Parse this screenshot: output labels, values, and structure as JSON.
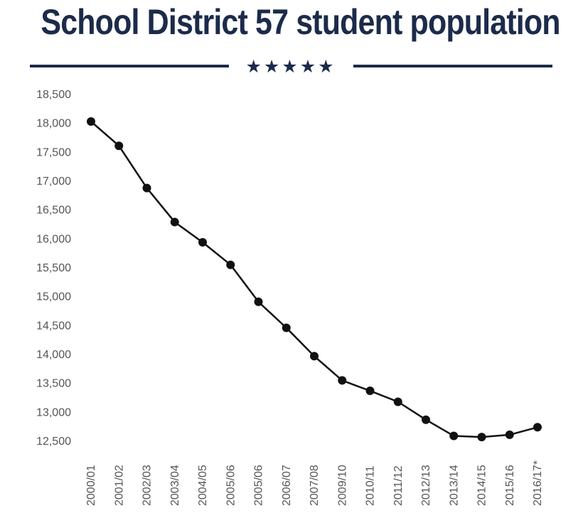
{
  "colors": {
    "navy": "#1c2b4a",
    "line": "#111111",
    "text": "#555555"
  },
  "stars": "★★★★★",
  "chart_data": {
    "type": "line",
    "title": "School District 57 student population",
    "xlabel": "",
    "ylabel": "",
    "ylim": [
      12500,
      18500
    ],
    "yticks": [
      18500,
      18000,
      17500,
      17000,
      16500,
      16000,
      15500,
      15000,
      14500,
      14000,
      13500,
      13000,
      12500
    ],
    "ytick_labels": [
      "18,500",
      "18,000",
      "17,500",
      "17,000",
      "16,500",
      "16,000",
      "15,500",
      "15,000",
      "14,500",
      "14,000",
      "13,500",
      "13,000",
      "12,500"
    ],
    "categories": [
      "2000/01",
      "2001/02",
      "2002/03",
      "2003/04",
      "2004/05",
      "2005/06",
      "2005/06",
      "2006/07",
      "2007/08",
      "2009/10",
      "2010/11",
      "2011/12",
      "2012/13",
      "2013/14",
      "2014/15",
      "2015/16",
      "2016/17*"
    ],
    "series": [
      {
        "name": "Student population",
        "values": [
          18020,
          17600,
          16870,
          16280,
          15930,
          15540,
          14900,
          14450,
          13960,
          13540,
          13360,
          13170,
          12860,
          12580,
          12560,
          12600,
          12730
        ]
      }
    ]
  }
}
